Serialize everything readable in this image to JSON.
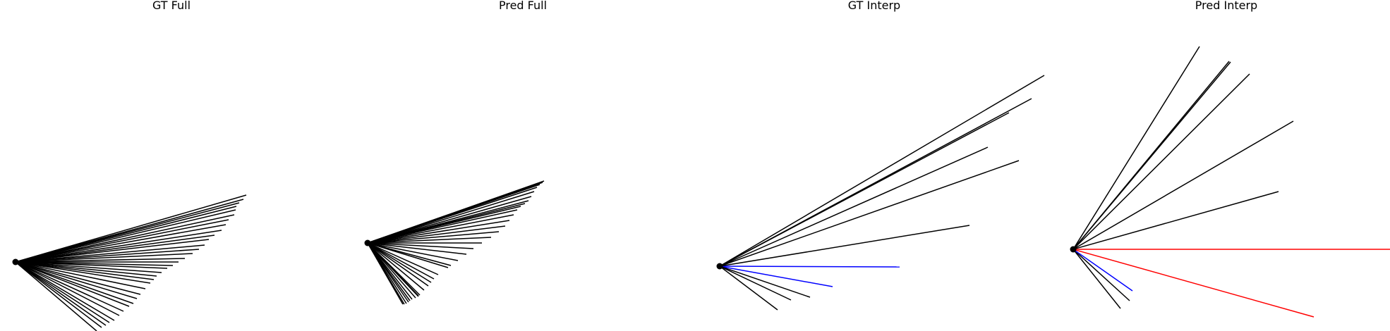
{
  "colors": {
    "black": "#000000",
    "blue": "#0000ff",
    "red": "#ff0000"
  },
  "panels": [
    {
      "title": "GT Full",
      "origin": [
        0,
        0
      ],
      "rays": [
        [
          115,
          98,
          "black"
        ],
        [
          122,
          93,
          "black"
        ],
        [
          128,
          90,
          "black"
        ],
        [
          133,
          86,
          "black"
        ],
        [
          140,
          83,
          "black"
        ],
        [
          147,
          76,
          "black"
        ],
        [
          153,
          70,
          "black"
        ],
        [
          161,
          63,
          "black"
        ],
        [
          167,
          59,
          "black"
        ],
        [
          172,
          52,
          "black"
        ],
        [
          177,
          46,
          "black"
        ],
        [
          184,
          38,
          "black"
        ],
        [
          191,
          30,
          "black"
        ],
        [
          196,
          25,
          "black"
        ],
        [
          200,
          20,
          "black"
        ],
        [
          207,
          15,
          "black"
        ],
        [
          215,
          9,
          "black"
        ],
        [
          223,
          5,
          "black"
        ],
        [
          231,
          0,
          "black"
        ],
        [
          240,
          -5,
          "black"
        ],
        [
          251,
          -12,
          "black"
        ],
        [
          260,
          -18,
          "black"
        ],
        [
          268,
          -24,
          "black"
        ],
        [
          274,
          -32,
          "black"
        ],
        [
          282,
          -38,
          "black"
        ],
        [
          292,
          -45,
          "black"
        ],
        [
          298,
          -53,
          "black"
        ],
        [
          302,
          -60,
          "black"
        ],
        [
          310,
          -67,
          "black"
        ],
        [
          312,
          -74,
          "black"
        ],
        [
          313,
          -79,
          "black"
        ],
        [
          317,
          -84,
          "black"
        ],
        [
          323,
          -89,
          "black"
        ],
        [
          327,
          -95,
          "black"
        ]
      ]
    },
    {
      "title": "Pred Full",
      "origin": [
        0,
        0
      ],
      "rays": [
        [
          50,
          87,
          "black"
        ],
        [
          52,
          87,
          "black"
        ],
        [
          55,
          86,
          "black"
        ],
        [
          58,
          84,
          "black"
        ],
        [
          60,
          82,
          "black"
        ],
        [
          63,
          80,
          "black"
        ],
        [
          68,
          78,
          "black"
        ],
        [
          72,
          76,
          "black"
        ],
        [
          72,
          75,
          "black"
        ],
        [
          74,
          74,
          "black"
        ],
        [
          80,
          67,
          "black"
        ],
        [
          86,
          61,
          "black"
        ],
        [
          90,
          56,
          "black"
        ],
        [
          94,
          51,
          "black"
        ],
        [
          100,
          45,
          "black"
        ],
        [
          114,
          35,
          "black"
        ],
        [
          118,
          32,
          "black"
        ],
        [
          128,
          25,
          "black"
        ],
        [
          140,
          16,
          "black"
        ],
        [
          150,
          8,
          "black"
        ],
        [
          162,
          0,
          "black"
        ],
        [
          175,
          -8,
          "black"
        ],
        [
          186,
          -16,
          "black"
        ],
        [
          195,
          -24,
          "black"
        ],
        [
          201,
          -32,
          "black"
        ],
        [
          207,
          -40,
          "black"
        ],
        [
          212,
          -47,
          "black"
        ],
        [
          217,
          -52,
          "black"
        ],
        [
          223,
          -56,
          "black"
        ],
        [
          228,
          -60,
          "black"
        ],
        [
          232,
          -66,
          "black"
        ],
        [
          236,
          -73,
          "black"
        ],
        [
          240,
          -79,
          "black"
        ],
        [
          244,
          -83,
          "black"
        ],
        [
          248,
          -86,
          "black"
        ],
        [
          250,
          -88,
          "black"
        ]
      ]
    },
    {
      "title": "GT Interp",
      "origin": [
        0,
        0
      ],
      "rays": [
        [
          255,
          1,
          "blue"
        ],
        [
          160,
          29,
          "blue"
        ],
        [
          82,
          62,
          "black"
        ],
        [
          101,
          48,
          "black"
        ],
        [
          128,
          44,
          "black"
        ],
        [
          354,
          -58,
          "black"
        ],
        [
          380,
          -169,
          "black"
        ],
        [
          410,
          -218,
          "black"
        ],
        [
          424,
          -150,
          "black"
        ],
        [
          442,
          -238,
          "black"
        ],
        [
          460,
          -271,
          "black"
        ]
      ]
    },
    {
      "title": "Pred Interp",
      "origin": [
        0,
        0
      ],
      "rays": [
        [
          67,
          84,
          "black"
        ],
        [
          80,
          73,
          "black"
        ],
        [
          84,
          59,
          "blue"
        ],
        [
          460,
          0,
          "red"
        ],
        [
          341,
          96,
          "red"
        ],
        [
          291,
          -82,
          "black"
        ],
        [
          312,
          -182,
          "black"
        ],
        [
          250,
          -249,
          "black"
        ],
        [
          221,
          -267,
          "black"
        ],
        [
          179,
          -288,
          "black"
        ],
        [
          223,
          -266,
          "black"
        ]
      ]
    }
  ]
}
